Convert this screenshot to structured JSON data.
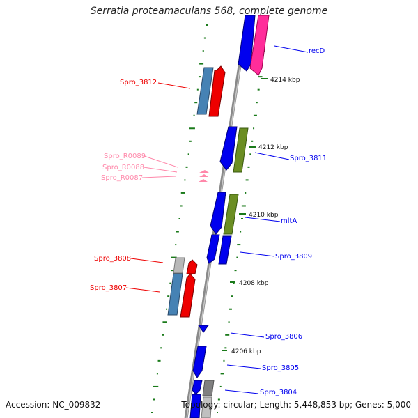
{
  "title": "Serratia proteamaculans 568, complete genome",
  "accession_text": "Accession: NC_009832",
  "summary_text": "Topology: circular; Length: 5,448,853 bp; Genes: 5,000",
  "colors": {
    "forward_gene": "#0000ee",
    "reverse_gene": "#ee0000",
    "rna_label": "#ff88aa",
    "protein_blue": "#4682b4",
    "protein_green": "#6b8e23",
    "protein_pink": "#ff2d9a",
    "gc_tick": "#1a7a1a",
    "backbone": "#888888"
  },
  "kbp_labels": [
    {
      "id": "kbp-4214",
      "text": "4214 kbp"
    },
    {
      "id": "kbp-4212",
      "text": "4212 kbp"
    },
    {
      "id": "kbp-4210",
      "text": "4210 kbp"
    },
    {
      "id": "kbp-4208",
      "text": "4208 kbp"
    },
    {
      "id": "kbp-4206",
      "text": "4206 kbp"
    }
  ],
  "gene_labels": [
    {
      "id": "recD",
      "text": "recD",
      "strand": "forward"
    },
    {
      "id": "Spro_3812",
      "text": "Spro_3812",
      "strand": "reverse"
    },
    {
      "id": "Spro_3811",
      "text": "Spro_3811",
      "strand": "forward"
    },
    {
      "id": "Spro_R0089",
      "text": "Spro_R0089",
      "strand": "rna"
    },
    {
      "id": "Spro_R0088",
      "text": "Spro_R0088",
      "strand": "rna"
    },
    {
      "id": "Spro_R0087",
      "text": "Spro_R0087",
      "strand": "rna"
    },
    {
      "id": "mltA",
      "text": "mltA",
      "strand": "forward"
    },
    {
      "id": "Spro_3809",
      "text": "Spro_3809",
      "strand": "forward"
    },
    {
      "id": "Spro_3808",
      "text": "Spro_3808",
      "strand": "reverse"
    },
    {
      "id": "Spro_3807",
      "text": "Spro_3807",
      "strand": "reverse"
    },
    {
      "id": "Spro_3806",
      "text": "Spro_3806",
      "strand": "forward"
    },
    {
      "id": "Spro_3805",
      "text": "Spro_3805",
      "strand": "forward"
    },
    {
      "id": "Spro_3804",
      "text": "Spro_3804",
      "strand": "forward"
    }
  ]
}
